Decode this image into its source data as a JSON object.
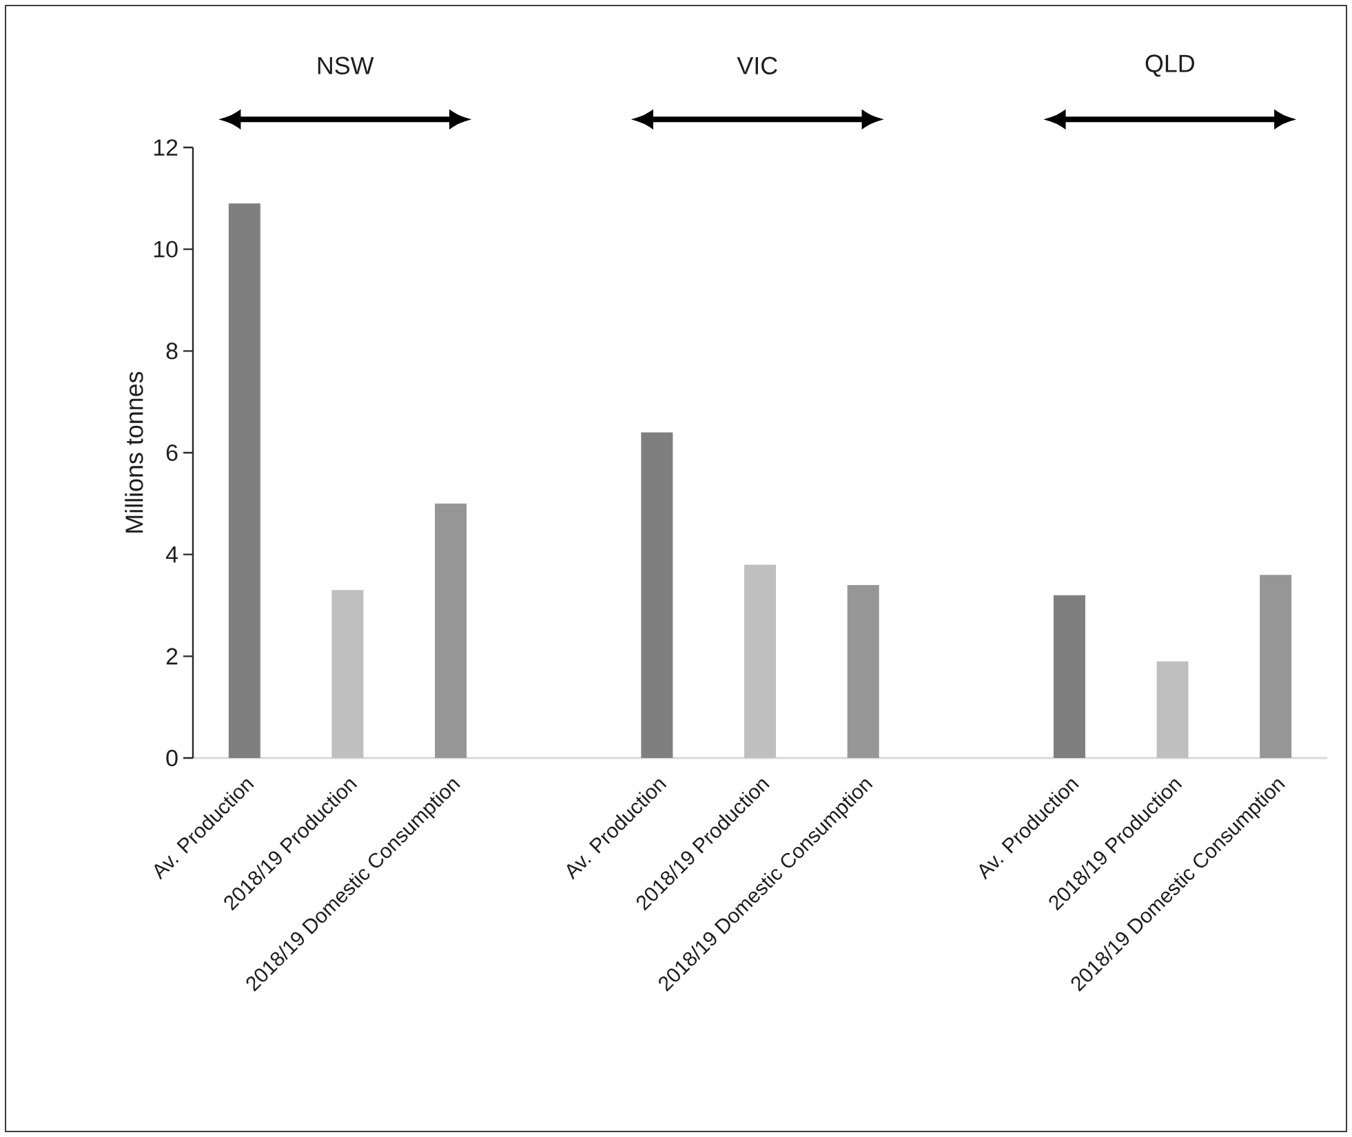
{
  "chart_data": {
    "type": "bar",
    "ylabel": "Millions tonnes",
    "categories": [
      "Av. Production",
      "2018/19 Production",
      "2018/19 Domestic Consumption",
      null,
      "Av. Production",
      "2018/19 Production",
      "2018/19 Domestic Consumption",
      null,
      "Av. Production",
      "2018/19 Production",
      "2018/19 Domestic Consumption"
    ],
    "values": [
      10.9,
      3.3,
      5.0,
      null,
      6.4,
      3.8,
      3.4,
      null,
      3.2,
      1.9,
      3.6
    ],
    "colors": [
      "#7f7f7f",
      "#bfbfbf",
      "#969696",
      null,
      "#7f7f7f",
      "#bfbfbf",
      "#969696",
      null,
      "#7f7f7f",
      "#bfbfbf",
      "#969696"
    ],
    "ylim": [
      0,
      12
    ],
    "yticks": [
      0,
      2,
      4,
      6,
      8,
      10,
      12
    ],
    "annotations": [
      "NSW",
      "VIC",
      "QLD"
    ]
  }
}
